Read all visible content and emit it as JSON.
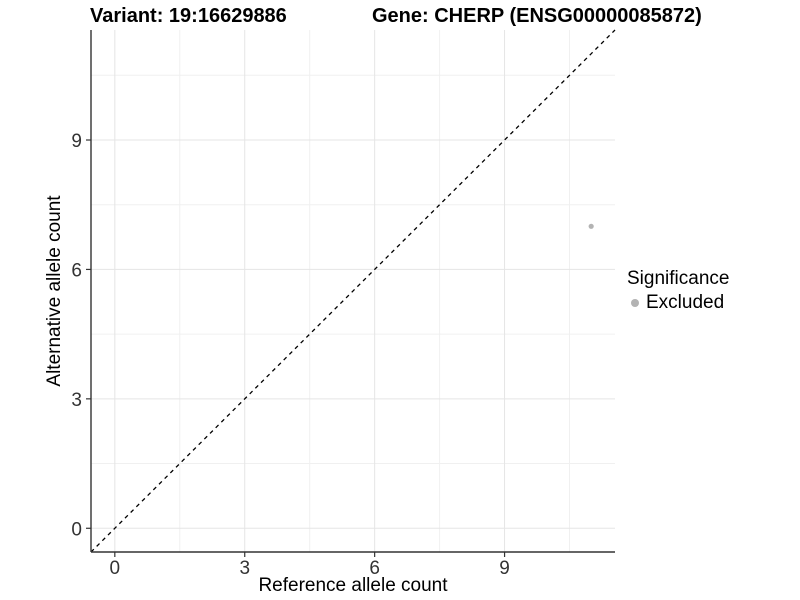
{
  "chart_data": {
    "type": "scatter",
    "title_left": "Variant: 19:16629886",
    "title_right": "Gene: CHERP (ENSG00000085872)",
    "xlabel": "Reference allele count",
    "ylabel": "Alternative allele count",
    "xlim": [
      -0.55,
      11.55
    ],
    "ylim": [
      -0.55,
      11.55
    ],
    "x_ticks": [
      0,
      3,
      6,
      9
    ],
    "y_ticks": [
      0,
      3,
      6,
      9
    ],
    "x_minor_ticks": [
      1.5,
      4.5,
      7.5,
      10.5
    ],
    "y_minor_ticks": [
      1.5,
      4.5,
      7.5,
      10.5
    ],
    "grid": true,
    "legend_position": "right",
    "reference_line": {
      "type": "identity-y-equals-x",
      "style": "dashed",
      "color": "#000000"
    },
    "series": [
      {
        "name": "Excluded",
        "color": "#b3b3b3",
        "points": [
          {
            "x": 11,
            "y": 7
          }
        ]
      }
    ],
    "legend": {
      "title": "Significance",
      "entries": [
        {
          "label": "Excluded",
          "color": "#b3b3b3"
        }
      ]
    },
    "colors": {
      "point": "#b3b3b3",
      "grid_major": "#e5e5e5",
      "grid_minor": "#f0f0f0",
      "axis_line": "#333333",
      "tick_label": "#333333",
      "reference_line": "#000000",
      "background": "#ffffff"
    }
  }
}
